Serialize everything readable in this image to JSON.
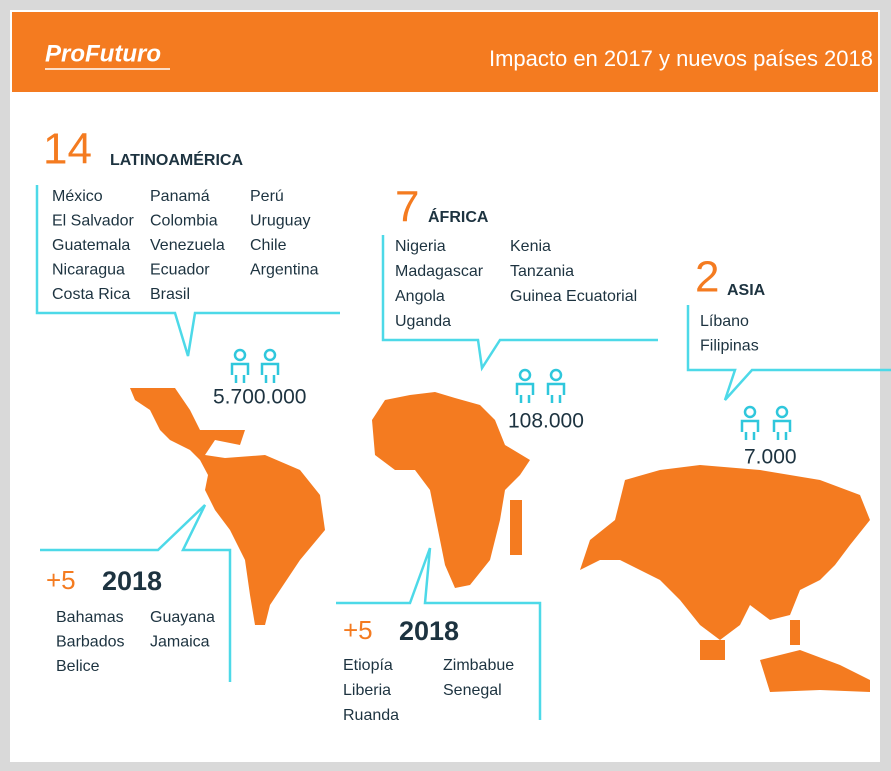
{
  "header": {
    "brand": "ProFuturo",
    "title": "Impacto en 2017 y nuevos países 2018"
  },
  "regions": [
    {
      "count": "14",
      "name": "LATINOAMÉRICA",
      "countries": [
        [
          "México",
          "El Salvador",
          "Guatemala",
          "Nicaragua",
          "Costa Rica"
        ],
        [
          "Panamá",
          "Colombia",
          "Venezuela",
          "Ecuador",
          "Brasil"
        ],
        [
          "Perú",
          "Uruguay",
          "Chile",
          "Argentina"
        ]
      ],
      "beneficiaries": "5.700.000"
    },
    {
      "count": "7",
      "name": "ÁFRICA",
      "countries": [
        [
          "Nigeria",
          "Madagascar",
          "Angola",
          "Uganda"
        ],
        [
          "Kenia",
          "Tanzania",
          "Guinea Ecuatorial"
        ]
      ],
      "beneficiaries": "108.000"
    },
    {
      "count": "2",
      "name": "ASIA",
      "countries": [
        [
          "Líbano",
          "Filipinas"
        ]
      ],
      "beneficiaries": "7.000"
    }
  ],
  "new_2018": [
    {
      "count": "+5",
      "year": "2018",
      "countries": [
        [
          "Bahamas",
          "Barbados",
          "Belice"
        ],
        [
          "Guayana",
          "Jamaica"
        ]
      ]
    },
    {
      "count": "+5",
      "year": "2018",
      "countries": [
        [
          "Etiopía",
          "Liberia",
          "Ruanda"
        ],
        [
          "Zimbabue",
          "Senegal"
        ]
      ]
    }
  ]
}
